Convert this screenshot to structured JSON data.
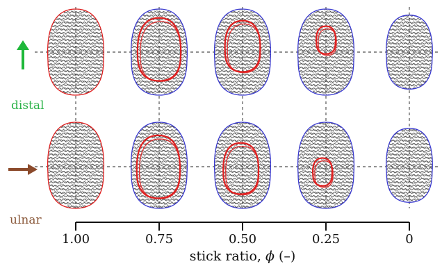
{
  "figure": {
    "x_axis_label_prefix": "stick ratio, ",
    "x_axis_symbol": "ϕ",
    "x_axis_unit": " (–)",
    "x_ticks": [
      "1.00",
      "0.75",
      "0.50",
      "0.25",
      "0"
    ],
    "rows": [
      {
        "label": "distal",
        "label_color": "#2db34a",
        "arrow_color": "#1fb83a",
        "arrow_direction": "up"
      },
      {
        "label": "ulnar",
        "label_color": "#8b5a3c",
        "arrow_color": "#8b4a2b",
        "arrow_direction": "right"
      }
    ],
    "outline_colors": {
      "stick_region": "#e02020",
      "contact_boundary": "#3a3ad0"
    }
  }
}
